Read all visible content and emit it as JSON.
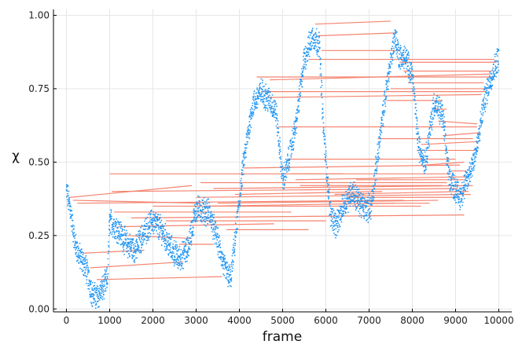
{
  "chart_data": {
    "type": "scatter",
    "xlabel": "frame",
    "ylabel": "χ",
    "xlim": [
      -300,
      10300
    ],
    "ylim": [
      -0.01,
      1.02
    ],
    "x_ticks": [
      0,
      1000,
      2000,
      3000,
      4000,
      5000,
      6000,
      7000,
      8000,
      9000,
      10000
    ],
    "x_tick_labels": [
      "0",
      "1000",
      "2000",
      "3000",
      "4000",
      "5000",
      "6000",
      "7000",
      "8000",
      "9000",
      "10000"
    ],
    "y_ticks": [
      0.0,
      0.25,
      0.5,
      0.75,
      1.0
    ],
    "y_tick_labels": [
      "0.00",
      "0.25",
      "0.50",
      "0.75",
      "1.00"
    ],
    "grid": true,
    "legend": "none",
    "point_color": "#2196f3",
    "segment_color": "#f4836f",
    "trajectory_waypoints": [
      [
        0,
        0.4
      ],
      [
        80,
        0.35
      ],
      [
        200,
        0.22
      ],
      [
        300,
        0.18
      ],
      [
        450,
        0.14
      ],
      [
        600,
        0.05
      ],
      [
        700,
        0.04
      ],
      [
        850,
        0.07
      ],
      [
        950,
        0.1
      ],
      [
        1000,
        0.3
      ],
      [
        1200,
        0.27
      ],
      [
        1400,
        0.22
      ],
      [
        1600,
        0.2
      ],
      [
        1800,
        0.26
      ],
      [
        2000,
        0.3
      ],
      [
        2200,
        0.27
      ],
      [
        2400,
        0.21
      ],
      [
        2600,
        0.17
      ],
      [
        2800,
        0.2
      ],
      [
        3000,
        0.34
      ],
      [
        3300,
        0.33
      ],
      [
        3500,
        0.23
      ],
      [
        3650,
        0.14
      ],
      [
        3800,
        0.1
      ],
      [
        3950,
        0.3
      ],
      [
        4100,
        0.5
      ],
      [
        4300,
        0.69
      ],
      [
        4500,
        0.74
      ],
      [
        4700,
        0.71
      ],
      [
        4850,
        0.67
      ],
      [
        5000,
        0.44
      ],
      [
        5100,
        0.48
      ],
      [
        5300,
        0.62
      ],
      [
        5500,
        0.85
      ],
      [
        5700,
        0.93
      ],
      [
        5850,
        0.9
      ],
      [
        5950,
        0.6
      ],
      [
        6100,
        0.33
      ],
      [
        6250,
        0.28
      ],
      [
        6400,
        0.35
      ],
      [
        6600,
        0.4
      ],
      [
        6900,
        0.34
      ],
      [
        7050,
        0.35
      ],
      [
        7250,
        0.58
      ],
      [
        7450,
        0.8
      ],
      [
        7600,
        0.93
      ],
      [
        7700,
        0.86
      ],
      [
        7850,
        0.85
      ],
      [
        8000,
        0.8
      ],
      [
        8150,
        0.55
      ],
      [
        8300,
        0.5
      ],
      [
        8500,
        0.7
      ],
      [
        8700,
        0.66
      ],
      [
        8850,
        0.45
      ],
      [
        9100,
        0.38
      ],
      [
        9300,
        0.45
      ],
      [
        9500,
        0.55
      ],
      [
        9650,
        0.7
      ],
      [
        9800,
        0.78
      ],
      [
        10000,
        0.86
      ]
    ],
    "transition_segments": [
      [
        80,
        0.38,
        2900,
        0.42
      ],
      [
        150,
        0.37,
        3100,
        0.36
      ],
      [
        250,
        0.36,
        7800,
        0.37
      ],
      [
        400,
        0.19,
        1800,
        0.2
      ],
      [
        550,
        0.14,
        2700,
        0.16
      ],
      [
        700,
        0.1,
        3600,
        0.11
      ],
      [
        1000,
        0.46,
        6400,
        0.46
      ],
      [
        1050,
        0.4,
        9050,
        0.41
      ],
      [
        1100,
        0.33,
        5200,
        0.33
      ],
      [
        1200,
        0.28,
        4800,
        0.29
      ],
      [
        1400,
        0.25,
        2900,
        0.24
      ],
      [
        1500,
        0.31,
        9200,
        0.32
      ],
      [
        2000,
        0.35,
        8200,
        0.35
      ],
      [
        2300,
        0.3,
        6000,
        0.3
      ],
      [
        2600,
        0.22,
        3400,
        0.22
      ],
      [
        3000,
        0.38,
        9350,
        0.39
      ],
      [
        3100,
        0.43,
        8800,
        0.43
      ],
      [
        3200,
        0.35,
        7600,
        0.36
      ],
      [
        3400,
        0.41,
        9400,
        0.42
      ],
      [
        3500,
        0.36,
        8600,
        0.37
      ],
      [
        3700,
        0.27,
        5600,
        0.27
      ],
      [
        3900,
        0.39,
        7300,
        0.4
      ],
      [
        4100,
        0.48,
        9100,
        0.49
      ],
      [
        4400,
        0.79,
        9900,
        0.79
      ],
      [
        4500,
        0.74,
        9700,
        0.74
      ],
      [
        4600,
        0.72,
        9600,
        0.73
      ],
      [
        4700,
        0.78,
        9800,
        0.8
      ],
      [
        4900,
        0.62,
        9500,
        0.62
      ],
      [
        5100,
        0.51,
        9000,
        0.51
      ],
      [
        5200,
        0.46,
        8900,
        0.46
      ],
      [
        5300,
        0.44,
        9300,
        0.45
      ],
      [
        5400,
        0.42,
        8700,
        0.42
      ],
      [
        5600,
        0.85,
        9900,
        0.85
      ],
      [
        5750,
        0.97,
        7500,
        0.98
      ],
      [
        5800,
        0.93,
        7600,
        0.94
      ],
      [
        5900,
        0.88,
        7700,
        0.88
      ],
      [
        6200,
        0.39,
        9150,
        0.4
      ],
      [
        6500,
        0.38,
        9000,
        0.38
      ],
      [
        6700,
        0.44,
        9200,
        0.44
      ],
      [
        7000,
        0.36,
        8400,
        0.36
      ],
      [
        7200,
        0.58,
        9400,
        0.58
      ],
      [
        7400,
        0.71,
        8700,
        0.71
      ],
      [
        7500,
        0.75,
        9750,
        0.75
      ],
      [
        7700,
        0.84,
        9950,
        0.84
      ],
      [
        7800,
        0.81,
        9850,
        0.81
      ],
      [
        7900,
        0.77,
        9650,
        0.77
      ],
      [
        8100,
        0.54,
        9450,
        0.54
      ],
      [
        8200,
        0.56,
        9550,
        0.57
      ],
      [
        8300,
        0.49,
        9200,
        0.5
      ],
      [
        8500,
        0.68,
        8800,
        0.68
      ],
      [
        8600,
        0.64,
        9500,
        0.63
      ],
      [
        8700,
        0.59,
        9550,
        0.6
      ],
      [
        8900,
        0.47,
        9250,
        0.47
      ],
      [
        9000,
        0.4,
        9300,
        0.4
      ]
    ]
  }
}
